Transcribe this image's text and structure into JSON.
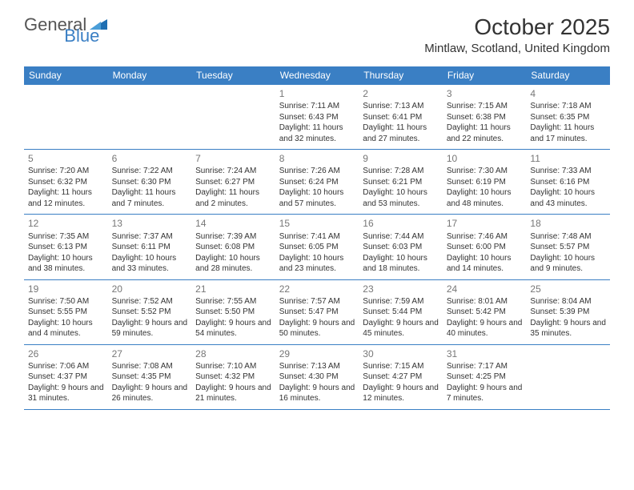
{
  "brand": {
    "part1": "General",
    "part2": "Blue",
    "logo_color": "#1f6fb2"
  },
  "title": "October 2025",
  "location": "Mintlaw, Scotland, United Kingdom",
  "colors": {
    "header_bg": "#3a7fc4",
    "header_text": "#ffffff",
    "rule": "#3a7fc4",
    "text": "#333333",
    "daynum": "#777777",
    "background": "#ffffff"
  },
  "day_headers": [
    "Sunday",
    "Monday",
    "Tuesday",
    "Wednesday",
    "Thursday",
    "Friday",
    "Saturday"
  ],
  "weeks": [
    [
      null,
      null,
      null,
      {
        "n": "1",
        "sr": "7:11 AM",
        "ss": "6:43 PM",
        "dl": "11 hours and 32 minutes."
      },
      {
        "n": "2",
        "sr": "7:13 AM",
        "ss": "6:41 PM",
        "dl": "11 hours and 27 minutes."
      },
      {
        "n": "3",
        "sr": "7:15 AM",
        "ss": "6:38 PM",
        "dl": "11 hours and 22 minutes."
      },
      {
        "n": "4",
        "sr": "7:18 AM",
        "ss": "6:35 PM",
        "dl": "11 hours and 17 minutes."
      }
    ],
    [
      {
        "n": "5",
        "sr": "7:20 AM",
        "ss": "6:32 PM",
        "dl": "11 hours and 12 minutes."
      },
      {
        "n": "6",
        "sr": "7:22 AM",
        "ss": "6:30 PM",
        "dl": "11 hours and 7 minutes."
      },
      {
        "n": "7",
        "sr": "7:24 AM",
        "ss": "6:27 PM",
        "dl": "11 hours and 2 minutes."
      },
      {
        "n": "8",
        "sr": "7:26 AM",
        "ss": "6:24 PM",
        "dl": "10 hours and 57 minutes."
      },
      {
        "n": "9",
        "sr": "7:28 AM",
        "ss": "6:21 PM",
        "dl": "10 hours and 53 minutes."
      },
      {
        "n": "10",
        "sr": "7:30 AM",
        "ss": "6:19 PM",
        "dl": "10 hours and 48 minutes."
      },
      {
        "n": "11",
        "sr": "7:33 AM",
        "ss": "6:16 PM",
        "dl": "10 hours and 43 minutes."
      }
    ],
    [
      {
        "n": "12",
        "sr": "7:35 AM",
        "ss": "6:13 PM",
        "dl": "10 hours and 38 minutes."
      },
      {
        "n": "13",
        "sr": "7:37 AM",
        "ss": "6:11 PM",
        "dl": "10 hours and 33 minutes."
      },
      {
        "n": "14",
        "sr": "7:39 AM",
        "ss": "6:08 PM",
        "dl": "10 hours and 28 minutes."
      },
      {
        "n": "15",
        "sr": "7:41 AM",
        "ss": "6:05 PM",
        "dl": "10 hours and 23 minutes."
      },
      {
        "n": "16",
        "sr": "7:44 AM",
        "ss": "6:03 PM",
        "dl": "10 hours and 18 minutes."
      },
      {
        "n": "17",
        "sr": "7:46 AM",
        "ss": "6:00 PM",
        "dl": "10 hours and 14 minutes."
      },
      {
        "n": "18",
        "sr": "7:48 AM",
        "ss": "5:57 PM",
        "dl": "10 hours and 9 minutes."
      }
    ],
    [
      {
        "n": "19",
        "sr": "7:50 AM",
        "ss": "5:55 PM",
        "dl": "10 hours and 4 minutes."
      },
      {
        "n": "20",
        "sr": "7:52 AM",
        "ss": "5:52 PM",
        "dl": "9 hours and 59 minutes."
      },
      {
        "n": "21",
        "sr": "7:55 AM",
        "ss": "5:50 PM",
        "dl": "9 hours and 54 minutes."
      },
      {
        "n": "22",
        "sr": "7:57 AM",
        "ss": "5:47 PM",
        "dl": "9 hours and 50 minutes."
      },
      {
        "n": "23",
        "sr": "7:59 AM",
        "ss": "5:44 PM",
        "dl": "9 hours and 45 minutes."
      },
      {
        "n": "24",
        "sr": "8:01 AM",
        "ss": "5:42 PM",
        "dl": "9 hours and 40 minutes."
      },
      {
        "n": "25",
        "sr": "8:04 AM",
        "ss": "5:39 PM",
        "dl": "9 hours and 35 minutes."
      }
    ],
    [
      {
        "n": "26",
        "sr": "7:06 AM",
        "ss": "4:37 PM",
        "dl": "9 hours and 31 minutes."
      },
      {
        "n": "27",
        "sr": "7:08 AM",
        "ss": "4:35 PM",
        "dl": "9 hours and 26 minutes."
      },
      {
        "n": "28",
        "sr": "7:10 AM",
        "ss": "4:32 PM",
        "dl": "9 hours and 21 minutes."
      },
      {
        "n": "29",
        "sr": "7:13 AM",
        "ss": "4:30 PM",
        "dl": "9 hours and 16 minutes."
      },
      {
        "n": "30",
        "sr": "7:15 AM",
        "ss": "4:27 PM",
        "dl": "9 hours and 12 minutes."
      },
      {
        "n": "31",
        "sr": "7:17 AM",
        "ss": "4:25 PM",
        "dl": "9 hours and 7 minutes."
      },
      null
    ]
  ],
  "labels": {
    "sunrise": "Sunrise:",
    "sunset": "Sunset:",
    "daylight": "Daylight:"
  }
}
